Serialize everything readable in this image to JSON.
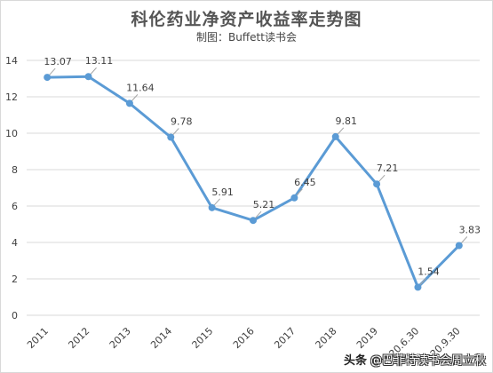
{
  "watermark": {
    "brand": "头条",
    "author": "@巴菲特读书会周立秋"
  },
  "chart_data": {
    "type": "line",
    "title": "科伦药业净资产收益率走势图",
    "subtitle": "制图：Buffett读书会",
    "xlabel": "",
    "ylabel": "",
    "categories": [
      "2011",
      "2012",
      "2013",
      "2014",
      "2015",
      "2016",
      "2017",
      "2018",
      "2019",
      "2020.6.30",
      "2020.9.30"
    ],
    "series": [
      {
        "name": "",
        "values": [
          13.07,
          13.11,
          11.64,
          9.78,
          5.91,
          5.21,
          6.45,
          9.81,
          7.21,
          1.54,
          3.83
        ],
        "labels": [
          "13.07",
          "13.11",
          "11.64",
          "9.78",
          "5.91",
          "5.21",
          "6.45",
          "9.81",
          "7.21",
          "1.54",
          "3.83"
        ]
      }
    ],
    "ylim": [
      0,
      14
    ],
    "yticks": [
      "0",
      "2",
      "4",
      "6",
      "8",
      "10",
      "12",
      "14"
    ],
    "grid": true,
    "legend": "none",
    "colors": {
      "line": "#5b9bd5",
      "grid": "#d9d9d9",
      "text": "#404040"
    }
  }
}
